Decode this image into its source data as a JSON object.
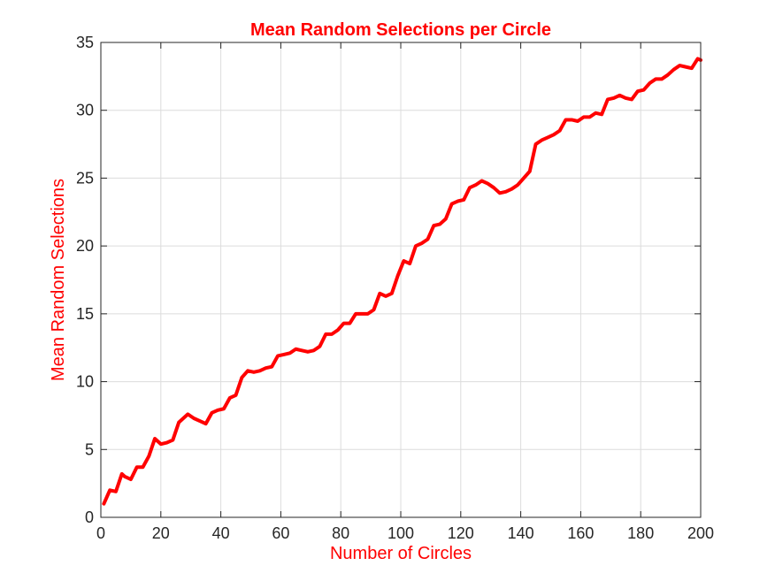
{
  "chart_data": {
    "type": "line",
    "title": "Mean Random Selections per Circle",
    "xlabel": "Number of Circles",
    "ylabel": "Mean Random Selections",
    "xlim": [
      0,
      200
    ],
    "ylim": [
      0,
      35
    ],
    "xticks": [
      0,
      20,
      40,
      60,
      80,
      100,
      120,
      140,
      160,
      180,
      200
    ],
    "yticks": [
      0,
      5,
      10,
      15,
      20,
      25,
      30,
      35
    ],
    "grid": true,
    "colors": {
      "line": "#ff0000",
      "title": "#ff0000",
      "labels": "#ff0000",
      "axes": "#262626",
      "grid": "#dcdcdc"
    },
    "series": [
      {
        "x": [
          1,
          3,
          5,
          7,
          8,
          10,
          12,
          14,
          16,
          18,
          20,
          22,
          24,
          26,
          29,
          31,
          33,
          35,
          37,
          39,
          41,
          43,
          45,
          47,
          49,
          51,
          53,
          55,
          57,
          59,
          61,
          63,
          65,
          67,
          69,
          71,
          73,
          75,
          77,
          79,
          81,
          83,
          85,
          87,
          89,
          91,
          93,
          95,
          97,
          99,
          101,
          103,
          105,
          107,
          109,
          111,
          113,
          115,
          117,
          119,
          121,
          123,
          125,
          127,
          129,
          131,
          133,
          135,
          137,
          139,
          141,
          143,
          145,
          147,
          149,
          151,
          153,
          155,
          157,
          159,
          161,
          163,
          165,
          167,
          169,
          171,
          173,
          175,
          177,
          179,
          181,
          183,
          185,
          187,
          189,
          191,
          193,
          195,
          197,
          199,
          200
        ],
        "y": [
          1.0,
          2.0,
          1.9,
          3.2,
          3.0,
          2.8,
          3.7,
          3.7,
          4.5,
          5.8,
          5.4,
          5.5,
          5.7,
          7.0,
          7.6,
          7.3,
          7.1,
          6.9,
          7.7,
          7.9,
          8.0,
          8.8,
          9.0,
          10.3,
          10.8,
          10.7,
          10.8,
          11.0,
          11.1,
          11.9,
          12.0,
          12.1,
          12.4,
          12.3,
          12.2,
          12.3,
          12.6,
          13.5,
          13.5,
          13.8,
          14.3,
          14.3,
          15.0,
          15.0,
          15.0,
          15.3,
          16.5,
          16.3,
          16.5,
          17.8,
          18.9,
          18.7,
          20.0,
          20.2,
          20.5,
          21.5,
          21.6,
          22.0,
          23.1,
          23.3,
          23.4,
          24.3,
          24.5,
          24.8,
          24.6,
          24.3,
          23.9,
          24.0,
          24.2,
          24.5,
          25.0,
          25.5,
          27.5,
          27.8,
          28.0,
          28.2,
          28.5,
          29.3,
          29.3,
          29.2,
          29.5,
          29.5,
          29.8,
          29.7,
          30.8,
          30.9,
          31.1,
          30.9,
          30.8,
          31.4,
          31.5,
          32.0,
          32.3,
          32.3,
          32.6,
          33.0,
          33.3,
          33.2,
          33.1,
          33.8,
          33.7
        ]
      }
    ]
  }
}
